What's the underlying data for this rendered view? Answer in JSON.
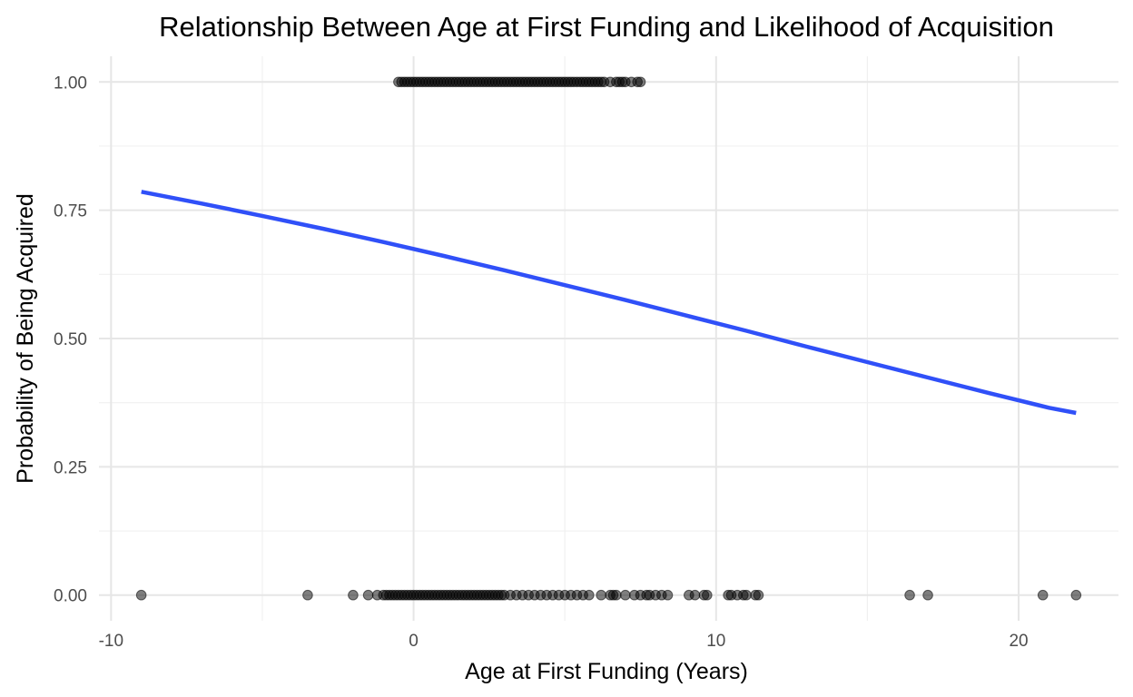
{
  "chart_data": {
    "type": "scatter",
    "title": "Relationship Between Age at First Funding and Likelihood of Acquisition",
    "xlabel": "Age at First Funding (Years)",
    "ylabel": "Probability of Being Acquired",
    "xlim": [
      -10.4,
      23.3
    ],
    "ylim": [
      -0.05,
      1.05
    ],
    "x_ticks": [
      -10,
      0,
      10,
      20
    ],
    "x_tick_labels": [
      "-10",
      "0",
      "10",
      "20"
    ],
    "y_ticks": [
      0,
      0.25,
      0.5,
      0.75,
      1
    ],
    "y_tick_labels": [
      "0.00",
      "0.25",
      "0.50",
      "0.75",
      "1.00"
    ],
    "grid": true,
    "colors": {
      "points": "#000000",
      "fit_line": "#3050f8"
    },
    "series": [
      {
        "kind": "points",
        "y": 1,
        "x": [
          -0.5,
          -0.4,
          -0.3,
          -0.2,
          -0.1,
          0,
          0.1,
          0.2,
          0.3,
          0.4,
          0.5,
          0.6,
          0.7,
          0.8,
          0.9,
          1.0,
          1.1,
          1.2,
          1.3,
          1.4,
          1.5,
          1.6,
          1.7,
          1.8,
          1.9,
          2.0,
          2.1,
          2.2,
          2.3,
          2.4,
          2.5,
          2.6,
          2.7,
          2.8,
          2.9,
          3.0,
          3.1,
          3.2,
          3.3,
          3.4,
          3.5,
          3.6,
          3.7,
          3.8,
          3.9,
          4.0,
          4.1,
          4.2,
          4.3,
          4.4,
          4.5,
          4.6,
          4.7,
          4.8,
          4.9,
          5.0,
          5.1,
          5.2,
          5.3,
          5.4,
          5.5,
          5.6,
          5.7,
          5.8,
          5.9,
          6.0,
          6.1,
          6.2,
          6.3,
          6.5,
          6.7,
          6.8,
          6.9,
          7.0,
          7.2,
          7.4,
          7.5
        ]
      },
      {
        "kind": "points",
        "y": 0,
        "x": [
          -9.0,
          -3.5,
          -2.0,
          -1.5,
          -1.2,
          -1.0,
          -0.9,
          -0.8,
          -0.7,
          -0.6,
          -0.5,
          -0.4,
          -0.3,
          -0.2,
          -0.1,
          0,
          0.1,
          0.2,
          0.3,
          0.4,
          0.5,
          0.6,
          0.7,
          0.8,
          0.9,
          1.0,
          1.1,
          1.2,
          1.3,
          1.4,
          1.5,
          1.6,
          1.7,
          1.8,
          1.9,
          2.0,
          2.1,
          2.2,
          2.3,
          2.4,
          2.5,
          2.6,
          2.7,
          2.8,
          2.9,
          3.0,
          3.2,
          3.4,
          3.6,
          3.8,
          4.0,
          4.2,
          4.4,
          4.6,
          4.8,
          5.0,
          5.2,
          5.4,
          5.6,
          5.8,
          6.2,
          6.5,
          6.6,
          6.7,
          7.0,
          7.3,
          7.5,
          7.7,
          7.8,
          8.0,
          8.2,
          8.4,
          9.1,
          9.3,
          9.6,
          9.7,
          10.4,
          10.5,
          10.7,
          10.9,
          11.0,
          11.3,
          11.4,
          16.4,
          17.0,
          20.8,
          21.9
        ]
      },
      {
        "kind": "line",
        "x": [
          -9,
          -7,
          -5,
          -3,
          -1,
          1,
          3,
          5,
          7,
          9,
          11,
          13,
          15,
          17,
          19,
          21,
          21.9
        ],
        "y": [
          0.786,
          0.763,
          0.739,
          0.714,
          0.688,
          0.661,
          0.633,
          0.604,
          0.575,
          0.545,
          0.515,
          0.484,
          0.454,
          0.424,
          0.394,
          0.365,
          0.355
        ]
      }
    ]
  }
}
